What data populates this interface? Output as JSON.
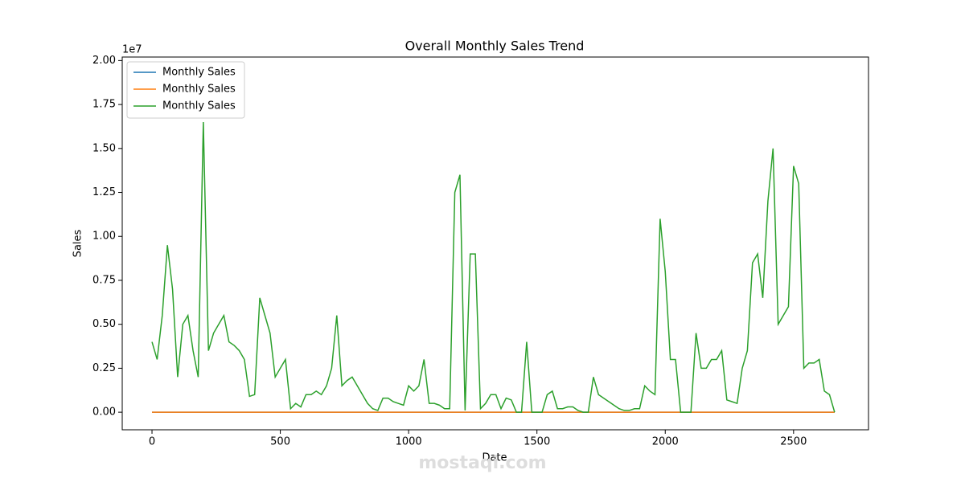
{
  "chart_data": {
    "type": "line",
    "title": "Overall Monthly Sales Trend",
    "x_label": "Date",
    "y_label": "Sales",
    "y_offset_label": "1e7",
    "watermark": "mostaqi.com",
    "legend": "upper left",
    "xlim": [
      -116,
      2792
    ],
    "ylim": [
      -0.1,
      2.02
    ],
    "xticks": [
      0,
      500,
      1000,
      1500,
      2000,
      2500
    ],
    "yticks": [
      {
        "value": 0,
        "label": "0.00"
      },
      {
        "value": 0.25,
        "label": "0.25"
      },
      {
        "value": 0.5,
        "label": "0.50"
      },
      {
        "value": 0.75,
        "label": "0.75"
      },
      {
        "value": 1,
        "label": "1.00"
      },
      {
        "value": 1.25,
        "label": "1.25"
      },
      {
        "value": 1.5,
        "label": "1.50"
      },
      {
        "value": 1.75,
        "label": "1.75"
      },
      {
        "value": 2,
        "label": "2.00"
      }
    ],
    "x": [
      0,
      20,
      40,
      60,
      80,
      100,
      120,
      140,
      160,
      180,
      200,
      220,
      240,
      260,
      280,
      300,
      320,
      340,
      360,
      380,
      400,
      420,
      440,
      460,
      480,
      500,
      520,
      540,
      560,
      580,
      600,
      620,
      640,
      660,
      680,
      700,
      720,
      740,
      760,
      780,
      800,
      820,
      840,
      860,
      880,
      900,
      920,
      940,
      960,
      980,
      1000,
      1020,
      1040,
      1060,
      1080,
      1100,
      1120,
      1140,
      1160,
      1180,
      1200,
      1220,
      1240,
      1260,
      1280,
      1300,
      1320,
      1340,
      1360,
      1380,
      1400,
      1420,
      1440,
      1460,
      1480,
      1500,
      1520,
      1540,
      1560,
      1580,
      1600,
      1620,
      1640,
      1660,
      1680,
      1700,
      1720,
      1740,
      1760,
      1780,
      1800,
      1820,
      1840,
      1860,
      1880,
      1900,
      1920,
      1940,
      1960,
      1980,
      2000,
      2020,
      2040,
      2060,
      2080,
      2100,
      2120,
      2140,
      2160,
      2180,
      2200,
      2220,
      2240,
      2260,
      2280,
      2300,
      2320,
      2340,
      2360,
      2380,
      2400,
      2420,
      2440,
      2460,
      2480,
      2500,
      2520,
      2540,
      2560,
      2580,
      2600,
      2620,
      2640,
      2660
    ],
    "series": [
      {
        "name": "Monthly Sales",
        "color": "#1f77b4",
        "values": [
          0,
          0,
          0,
          0,
          0,
          0,
          0,
          0,
          0,
          0,
          0,
          0,
          0,
          0,
          0,
          0,
          0,
          0,
          0,
          0,
          0,
          0,
          0,
          0,
          0,
          0,
          0,
          0,
          0,
          0,
          0,
          0,
          0,
          0,
          0,
          0,
          0,
          0,
          0,
          0,
          0,
          0,
          0,
          0,
          0,
          0,
          0,
          0,
          0,
          0,
          0,
          0,
          0,
          0,
          0,
          0,
          0,
          0,
          0,
          0,
          0,
          0,
          0,
          0,
          0,
          0,
          0,
          0,
          0,
          0,
          0,
          0,
          0,
          0,
          0,
          0,
          0,
          0,
          0,
          0,
          0,
          0,
          0,
          0,
          0,
          0,
          0,
          0,
          0,
          0,
          0,
          0,
          0,
          0,
          0,
          0,
          0,
          0,
          0,
          0,
          0,
          0,
          0,
          0,
          0,
          0,
          0,
          0,
          0,
          0,
          0,
          0,
          0,
          0,
          0,
          0,
          0,
          0,
          0,
          0,
          0,
          0,
          0,
          0,
          0,
          0,
          0,
          0,
          0,
          0,
          0,
          0,
          0,
          0
        ]
      },
      {
        "name": "Monthly Sales",
        "color": "#ff7f0e",
        "values": [
          0,
          0,
          0,
          0,
          0,
          0,
          0,
          0,
          0,
          0,
          0,
          0,
          0,
          0,
          0,
          0,
          0,
          0,
          0,
          0,
          0,
          0,
          0,
          0,
          0,
          0,
          0,
          0,
          0,
          0,
          0,
          0,
          0,
          0,
          0,
          0,
          0,
          0,
          0,
          0,
          0,
          0,
          0,
          0,
          0,
          0,
          0,
          0,
          0,
          0,
          0,
          0,
          0,
          0,
          0,
          0,
          0,
          0,
          0,
          0,
          0,
          0,
          0,
          0,
          0,
          0,
          0,
          0,
          0,
          0,
          0,
          0,
          0,
          0,
          0,
          0,
          0,
          0,
          0,
          0,
          0,
          0,
          0,
          0,
          0,
          0,
          0,
          0,
          0,
          0,
          0,
          0,
          0,
          0,
          0,
          0,
          0,
          0,
          0,
          0,
          0,
          0,
          0,
          0,
          0,
          0,
          0,
          0,
          0,
          0,
          0,
          0,
          0,
          0,
          0,
          0,
          0,
          0,
          0,
          0,
          0,
          0,
          0,
          0,
          0,
          0,
          0,
          0,
          0,
          0,
          0,
          0,
          0,
          0
        ]
      },
      {
        "name": "Monthly Sales",
        "color": "#2ca02c",
        "values": [
          0.4,
          0.3,
          0.55,
          0.95,
          0.7,
          0.2,
          0.5,
          0.55,
          0.35,
          0.2,
          1.65,
          0.35,
          0.45,
          0.5,
          0.55,
          0.4,
          0.38,
          0.35,
          0.3,
          0.09,
          0.1,
          0.65,
          0.55,
          0.45,
          0.2,
          0.25,
          0.3,
          0.02,
          0.05,
          0.03,
          0.1,
          0.1,
          0.12,
          0.1,
          0.15,
          0.25,
          0.55,
          0.15,
          0.18,
          0.2,
          0.15,
          0.1,
          0.05,
          0.02,
          0.01,
          0.08,
          0.08,
          0.06,
          0.05,
          0.04,
          0.15,
          0.12,
          0.15,
          0.3,
          0.05,
          0.05,
          0.04,
          0.02,
          0.02,
          1.25,
          1.35,
          0.01,
          0.9,
          0.9,
          0.02,
          0.05,
          0.1,
          0.1,
          0.02,
          0.08,
          0.07,
          0,
          0,
          0.4,
          0,
          0,
          0,
          0.1,
          0.12,
          0.02,
          0.02,
          0.03,
          0.03,
          0.01,
          0,
          0,
          0.2,
          0.1,
          0.08,
          0.06,
          0.04,
          0.02,
          0.01,
          0.01,
          0.02,
          0.02,
          0.15,
          0.12,
          0.1,
          1.1,
          0.8,
          0.3,
          0.3,
          0,
          0,
          0,
          0.45,
          0.25,
          0.25,
          0.3,
          0.3,
          0.35,
          0.07,
          0.06,
          0.05,
          0.25,
          0.35,
          0.85,
          0.9,
          0.65,
          1.2,
          1.5,
          0.5,
          0.55,
          0.6,
          1.4,
          1.3,
          0.25,
          0.28,
          0.28,
          0.3,
          0.12,
          0.1,
          0
        ]
      }
    ]
  }
}
